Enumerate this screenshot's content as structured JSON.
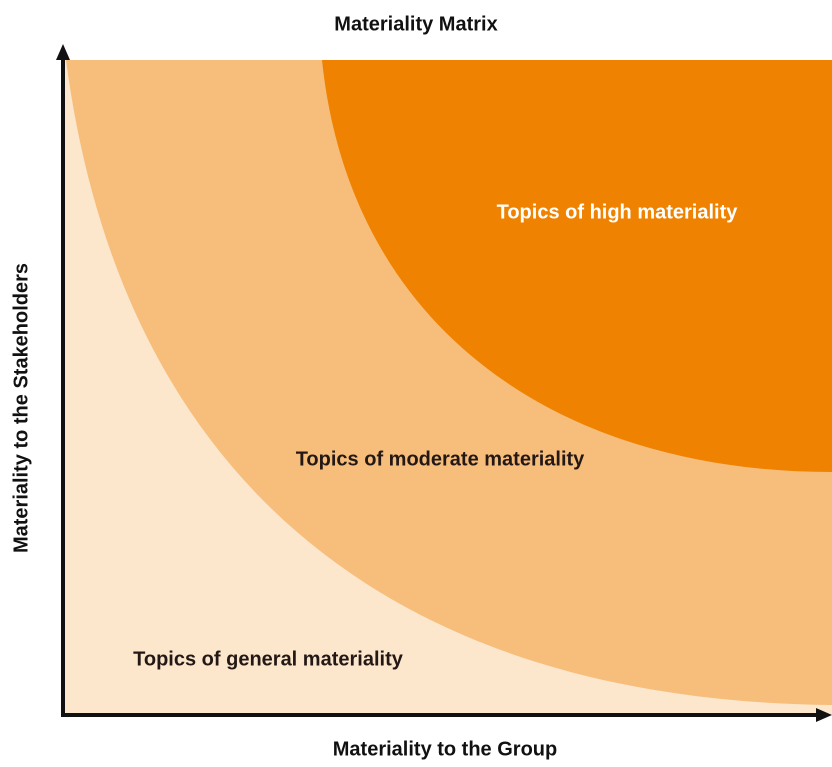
{
  "title": "Materiality Matrix",
  "x_axis_label": "Materiality to the Group",
  "y_axis_label": "Materiality to the Stakeholders",
  "regions": [
    {
      "label": "Topics of high materiality"
    },
    {
      "label": "Topics of moderate materiality"
    },
    {
      "label": "Topics of general materiality"
    }
  ]
}
